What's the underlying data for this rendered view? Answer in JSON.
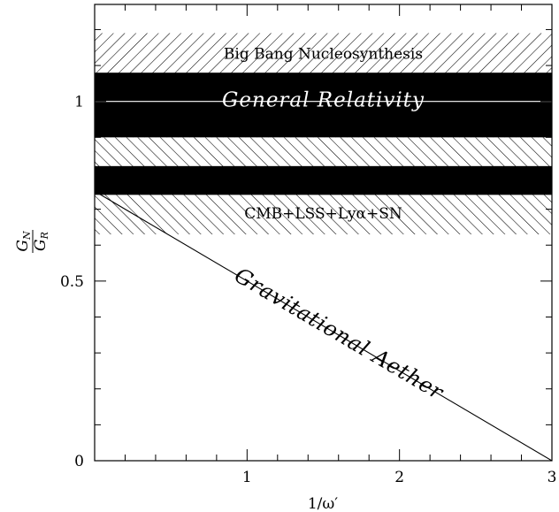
{
  "chart_data": {
    "type": "area",
    "xlabel": "1/ω′",
    "ylabel": {
      "numerator": "G",
      "numerator_sub": "N",
      "denominator": "G",
      "denominator_sub": "R"
    },
    "xlim": [
      0,
      3
    ],
    "ylim": [
      0,
      1.27
    ],
    "x_ticks": [
      1,
      2,
      3
    ],
    "y_ticks": [
      0,
      0.5,
      1
    ],
    "x_tick_labels": [
      "1",
      "2",
      "3"
    ],
    "y_tick_labels": [
      "0",
      "0.5",
      "1"
    ],
    "x_minor_step": 0.2,
    "y_minor_step": 0.1,
    "grid": false,
    "reference_line": {
      "y": 1
    },
    "bands": [
      {
        "name": "Big Bang Nucleosynthesis",
        "y": [
          0.9,
          1.19
        ],
        "pattern": "hatch-back"
      },
      {
        "name": "CMB+LSS+Lyα+SN",
        "y": [
          0.63,
          0.9
        ],
        "pattern": "hatch-forward"
      },
      {
        "name": "General Relativity",
        "y": [
          0.9,
          1.08
        ],
        "pattern": "solid"
      },
      {
        "name": "General Relativity",
        "y": [
          0.74,
          0.82
        ],
        "pattern": "solid"
      }
    ],
    "lines": [
      {
        "name": "Gravitational Aether",
        "x": [
          0,
          3
        ],
        "y": [
          0.75,
          0
        ]
      }
    ],
    "annotations": [
      {
        "text": "Big Bang Nucleosynthesis",
        "x": 1.5,
        "y": 1.13,
        "style": "plain"
      },
      {
        "text": "General Relativity",
        "x": 1.5,
        "y": 1.0,
        "style": "italic-white"
      },
      {
        "text": "CMB+LSS+Lyα+SN",
        "x": 1.5,
        "y": 0.685,
        "style": "plain"
      },
      {
        "text": "Gravitational Aether",
        "x": 1.6,
        "y": 0.35,
        "style": "italic-rotated"
      }
    ]
  }
}
